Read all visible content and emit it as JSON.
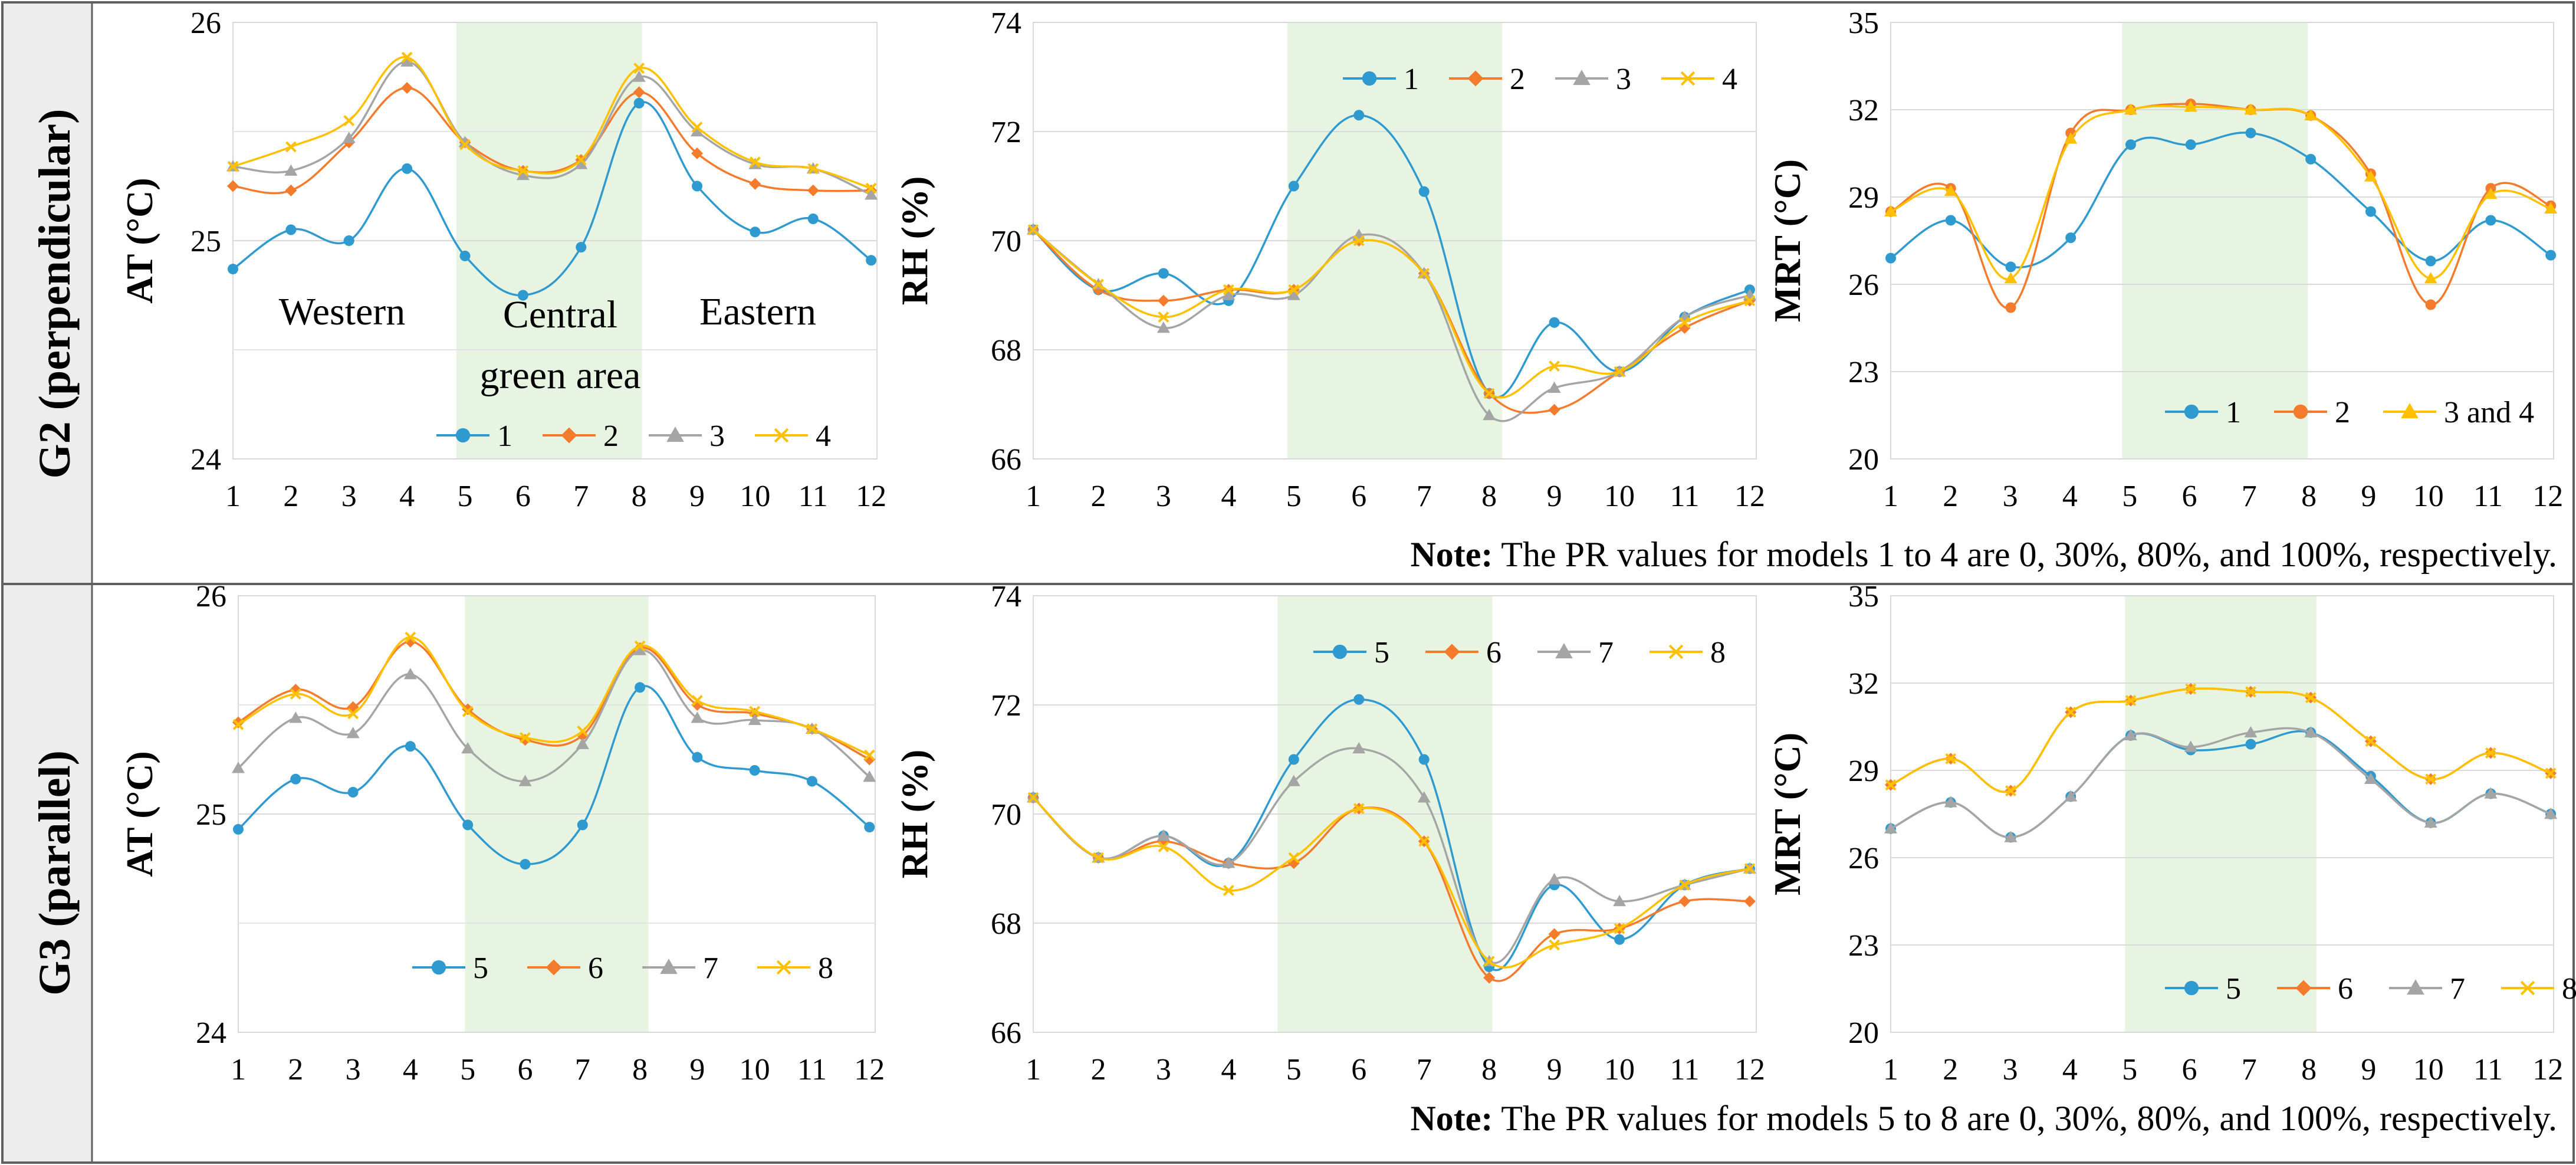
{
  "rows": [
    {
      "label": "G2 (perpendicular)",
      "note_bold": "Note:",
      "note_text": " The PR values for models 1 to 4 are 0, 30%, 80%, and 100%, respectively."
    },
    {
      "label": "G3 (parallel)",
      "note_bold": "Note:",
      "note_text": " The PR values for models 5 to 8 are 0, 30%, 80%, and 100%, respectively."
    }
  ],
  "colors": {
    "s1": "#2E9AD0",
    "s2": "#F47B2B",
    "s3": "#A5A5A5",
    "s4": "#FFC000",
    "band": "#E8F4E2",
    "frame": "#606060",
    "rowlabel_bg": "#EDEDED"
  },
  "chart_data": [
    {
      "id": "g2_at",
      "row": 0,
      "col": 0,
      "type": "line",
      "ylabel": "AT (°C)",
      "ylim": [
        24,
        26
      ],
      "yticks": [
        24,
        25,
        26
      ],
      "x": [
        1,
        2,
        3,
        4,
        5,
        6,
        7,
        8,
        9,
        10,
        11,
        12
      ],
      "xlim": [
        1,
        12.1
      ],
      "band": [
        4.85,
        8.05
      ],
      "annotations": [
        "Western",
        "Central",
        "green area",
        "Eastern"
      ],
      "legend": [
        "1",
        "2",
        "3",
        "4"
      ],
      "legend_position": "bottom",
      "series": [
        {
          "name": "1",
          "marker": "circle",
          "values": [
            24.87,
            25.05,
            25.0,
            25.33,
            24.93,
            24.75,
            24.97,
            25.63,
            25.25,
            25.04,
            25.1,
            24.91
          ]
        },
        {
          "name": "2",
          "marker": "diamond",
          "values": [
            25.25,
            25.23,
            25.45,
            25.7,
            25.45,
            25.32,
            25.37,
            25.68,
            25.4,
            25.26,
            25.23,
            25.23
          ]
        },
        {
          "name": "3",
          "marker": "triangle",
          "values": [
            25.34,
            25.32,
            25.47,
            25.82,
            25.45,
            25.3,
            25.35,
            25.75,
            25.5,
            25.35,
            25.33,
            25.21
          ]
        },
        {
          "name": "4",
          "marker": "x",
          "values": [
            25.34,
            25.43,
            25.55,
            25.84,
            25.44,
            25.32,
            25.37,
            25.79,
            25.52,
            25.36,
            25.33,
            25.24
          ]
        }
      ]
    },
    {
      "id": "g2_rh",
      "row": 0,
      "col": 1,
      "type": "line",
      "ylabel": "RH (%)",
      "ylim": [
        66,
        74
      ],
      "yticks": [
        66,
        68,
        70,
        72,
        74
      ],
      "x": [
        1,
        2,
        3,
        4,
        5,
        6,
        7,
        8,
        9,
        10,
        11,
        12
      ],
      "xlim": [
        1,
        12.1
      ],
      "band": [
        4.9,
        8.2
      ],
      "annotations": [],
      "legend": [
        "1",
        "2",
        "3",
        "4"
      ],
      "legend_position": "top-right",
      "series": [
        {
          "name": "1",
          "marker": "circle",
          "values": [
            70.2,
            69.1,
            69.4,
            68.9,
            71.0,
            72.3,
            70.9,
            67.2,
            68.5,
            67.6,
            68.6,
            69.1
          ]
        },
        {
          "name": "2",
          "marker": "diamond",
          "values": [
            70.2,
            69.1,
            68.9,
            69.1,
            69.1,
            70.0,
            69.4,
            67.2,
            66.9,
            67.6,
            68.4,
            68.9
          ]
        },
        {
          "name": "3",
          "marker": "triangle",
          "values": [
            70.2,
            69.2,
            68.4,
            69.0,
            69.0,
            70.1,
            69.4,
            66.8,
            67.3,
            67.6,
            68.6,
            69.0
          ]
        },
        {
          "name": "4",
          "marker": "x",
          "values": [
            70.2,
            69.2,
            68.6,
            69.1,
            69.1,
            70.0,
            69.4,
            67.2,
            67.7,
            67.6,
            68.5,
            68.9
          ]
        }
      ]
    },
    {
      "id": "g2_mrt",
      "row": 0,
      "col": 2,
      "type": "line",
      "ylabel": "MRT (°C)",
      "ylim": [
        20,
        35
      ],
      "yticks": [
        20,
        23,
        26,
        29,
        32,
        35
      ],
      "x": [
        1.0,
        2.05,
        3.1,
        4.15,
        5.2,
        6.25,
        7.3,
        8.35,
        9.4,
        10.45,
        11.5,
        12.55
      ],
      "xlim": [
        1,
        12.6
      ],
      "band": [
        5.05,
        8.3
      ],
      "annotations": [],
      "legend": [
        "1",
        "2",
        "3 and 4"
      ],
      "legend_position": "bottom-right",
      "series": [
        {
          "name": "1",
          "marker": "circle",
          "values": [
            26.9,
            28.2,
            26.6,
            27.6,
            30.8,
            30.8,
            31.2,
            30.3,
            28.5,
            26.8,
            28.2,
            27.0
          ]
        },
        {
          "name": "2",
          "marker": "circle",
          "values": [
            28.5,
            29.3,
            25.2,
            31.2,
            32.0,
            32.2,
            32.0,
            31.8,
            29.8,
            25.3,
            29.3,
            28.7
          ]
        },
        {
          "name": "3 and 4",
          "marker": "triangle",
          "values": [
            28.5,
            29.2,
            26.2,
            31.0,
            32.0,
            32.1,
            32.0,
            31.8,
            29.7,
            26.2,
            29.1,
            28.6
          ]
        }
      ]
    },
    {
      "id": "g3_at",
      "row": 1,
      "col": 0,
      "type": "line",
      "ylabel": "AT (°C)",
      "ylim": [
        24,
        26
      ],
      "yticks": [
        24,
        25,
        26
      ],
      "x": [
        1,
        2,
        3,
        4,
        5,
        6,
        7,
        8,
        9,
        10,
        11,
        12
      ],
      "xlim": [
        1,
        12.1
      ],
      "band": [
        4.95,
        8.15
      ],
      "annotations": [],
      "legend": [
        "5",
        "6",
        "7",
        "8"
      ],
      "legend_position": "bottom",
      "series": [
        {
          "name": "5",
          "marker": "circle",
          "values": [
            24.93,
            25.16,
            25.1,
            25.31,
            24.95,
            24.77,
            24.95,
            25.58,
            25.26,
            25.2,
            25.15,
            24.94
          ]
        },
        {
          "name": "6",
          "marker": "diamond",
          "values": [
            25.42,
            25.57,
            25.49,
            25.79,
            25.48,
            25.34,
            25.36,
            25.76,
            25.5,
            25.46,
            25.39,
            25.25
          ]
        },
        {
          "name": "7",
          "marker": "triangle",
          "values": [
            25.21,
            25.44,
            25.37,
            25.64,
            25.3,
            25.15,
            25.32,
            25.75,
            25.44,
            25.43,
            25.39,
            25.17
          ]
        },
        {
          "name": "8",
          "marker": "x",
          "values": [
            25.41,
            25.55,
            25.46,
            25.81,
            25.47,
            25.35,
            25.38,
            25.77,
            25.52,
            25.47,
            25.39,
            25.27
          ]
        }
      ]
    },
    {
      "id": "g3_rh",
      "row": 1,
      "col": 1,
      "type": "line",
      "ylabel": "RH (%)",
      "ylim": [
        66,
        74
      ],
      "yticks": [
        66,
        68,
        70,
        72,
        74
      ],
      "x": [
        1,
        2,
        3,
        4,
        5,
        6,
        7,
        8,
        9,
        10,
        11,
        12
      ],
      "xlim": [
        1,
        12.1
      ],
      "band": [
        4.75,
        8.05
      ],
      "annotations": [],
      "legend": [
        "5",
        "6",
        "7",
        "8"
      ],
      "legend_position": "top-right",
      "series": [
        {
          "name": "5",
          "marker": "circle",
          "values": [
            70.3,
            69.2,
            69.6,
            69.1,
            71.0,
            72.1,
            71.0,
            67.2,
            68.7,
            67.7,
            68.7,
            69.0
          ]
        },
        {
          "name": "6",
          "marker": "diamond",
          "values": [
            70.3,
            69.2,
            69.5,
            69.1,
            69.1,
            70.1,
            69.5,
            67.0,
            67.8,
            67.9,
            68.4,
            68.4
          ]
        },
        {
          "name": "7",
          "marker": "triangle",
          "values": [
            70.3,
            69.2,
            69.6,
            69.1,
            70.6,
            71.2,
            70.3,
            67.3,
            68.8,
            68.4,
            68.7,
            69.0
          ]
        },
        {
          "name": "8",
          "marker": "x",
          "values": [
            70.3,
            69.2,
            69.4,
            68.6,
            69.2,
            70.1,
            69.5,
            67.3,
            67.6,
            67.9,
            68.7,
            69.0
          ]
        }
      ]
    },
    {
      "id": "g3_mrt",
      "row": 1,
      "col": 2,
      "type": "line",
      "ylabel": "MRT (°C)",
      "ylim": [
        20,
        35
      ],
      "yticks": [
        20,
        23,
        26,
        29,
        32,
        35
      ],
      "x": [
        1.0,
        2.05,
        3.1,
        4.15,
        5.2,
        6.25,
        7.3,
        8.35,
        9.4,
        10.45,
        11.5,
        12.55
      ],
      "xlim": [
        1,
        12.6
      ],
      "band": [
        5.1,
        8.45
      ],
      "annotations": [],
      "legend": [
        "5",
        "6",
        "7",
        "8"
      ],
      "legend_position": "bottom-right",
      "series": [
        {
          "name": "5",
          "marker": "circle",
          "values": [
            27.0,
            27.9,
            26.7,
            28.1,
            30.2,
            29.7,
            29.9,
            30.3,
            28.8,
            27.2,
            28.2,
            27.5
          ]
        },
        {
          "name": "6",
          "marker": "diamond",
          "values": [
            28.5,
            29.4,
            28.3,
            31.0,
            31.4,
            31.8,
            31.7,
            31.5,
            30.0,
            28.7,
            29.6,
            28.9
          ]
        },
        {
          "name": "7",
          "marker": "triangle",
          "values": [
            27.0,
            27.9,
            26.7,
            28.1,
            30.2,
            29.8,
            30.3,
            30.3,
            28.7,
            27.2,
            28.2,
            27.5
          ]
        },
        {
          "name": "8",
          "marker": "x",
          "values": [
            28.5,
            29.4,
            28.3,
            31.0,
            31.4,
            31.8,
            31.7,
            31.5,
            30.0,
            28.7,
            29.6,
            28.9
          ]
        }
      ]
    }
  ]
}
